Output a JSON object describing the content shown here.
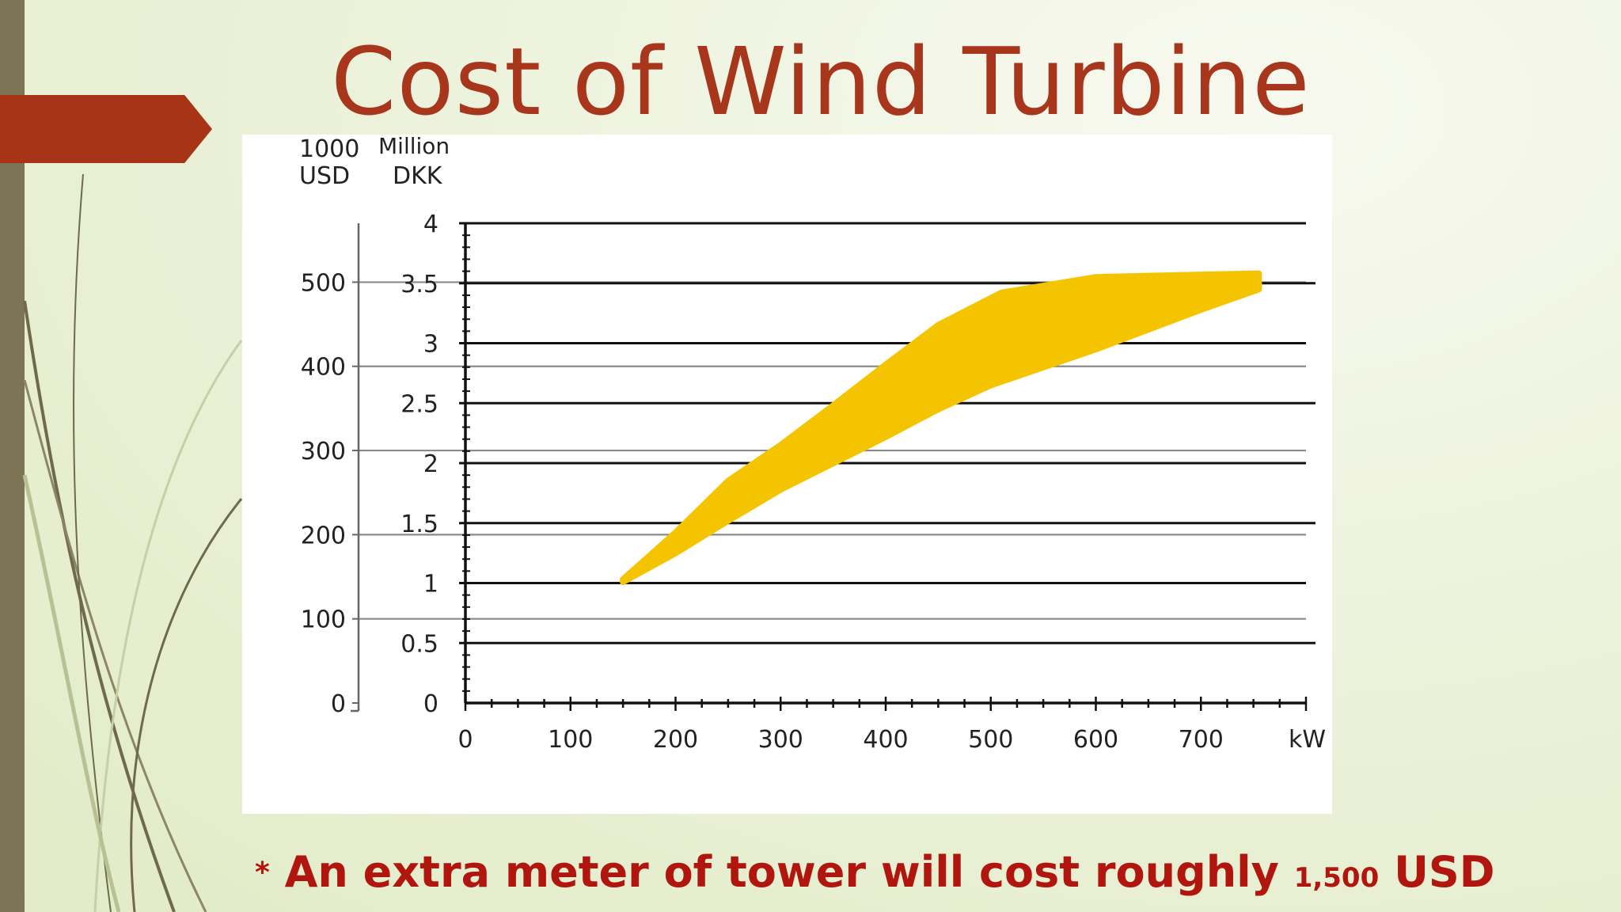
{
  "slide": {
    "title": "Cost of Wind Turbine",
    "note_prefix": "*",
    "note_main": "An extra meter of tower will cost roughly",
    "note_amount": "1,500",
    "note_unit": "USD"
  },
  "chart_data": {
    "type": "area",
    "title": "",
    "xlabel": "kW",
    "xlim": [
      0,
      800
    ],
    "x_ticks": [
      "0",
      "100",
      "200",
      "300",
      "400",
      "500",
      "600",
      "700"
    ],
    "left_axis": {
      "label_line1": "1000",
      "label_line2": "USD",
      "ylim": [
        0,
        570
      ],
      "ticks": [
        "0",
        "100",
        "200",
        "300",
        "400",
        "500"
      ]
    },
    "right_axis": {
      "label_line1": "Million",
      "label_line2": "DKK",
      "ylim": [
        0,
        4
      ],
      "ticks": [
        "0",
        "0.5",
        "1",
        "1.5",
        "2",
        "2.5",
        "3",
        "3.5",
        "4"
      ]
    },
    "grid": true,
    "band_color": "#f5c400",
    "series": [
      {
        "unit_axis": "right",
        "upper": [
          [
            150,
            1.03
          ],
          [
            200,
            1.42
          ],
          [
            250,
            1.85
          ],
          [
            300,
            2.15
          ],
          [
            350,
            2.48
          ],
          [
            400,
            2.82
          ],
          [
            450,
            3.15
          ],
          [
            510,
            3.42
          ],
          [
            600,
            3.55
          ],
          [
            700,
            3.57
          ],
          [
            755,
            3.58
          ]
        ],
        "lower": [
          [
            150,
            1.01
          ],
          [
            200,
            1.25
          ],
          [
            250,
            1.52
          ],
          [
            300,
            1.78
          ],
          [
            350,
            2.0
          ],
          [
            400,
            2.22
          ],
          [
            450,
            2.45
          ],
          [
            500,
            2.65
          ],
          [
            600,
            2.95
          ],
          [
            700,
            3.28
          ],
          [
            755,
            3.45
          ]
        ]
      }
    ]
  }
}
